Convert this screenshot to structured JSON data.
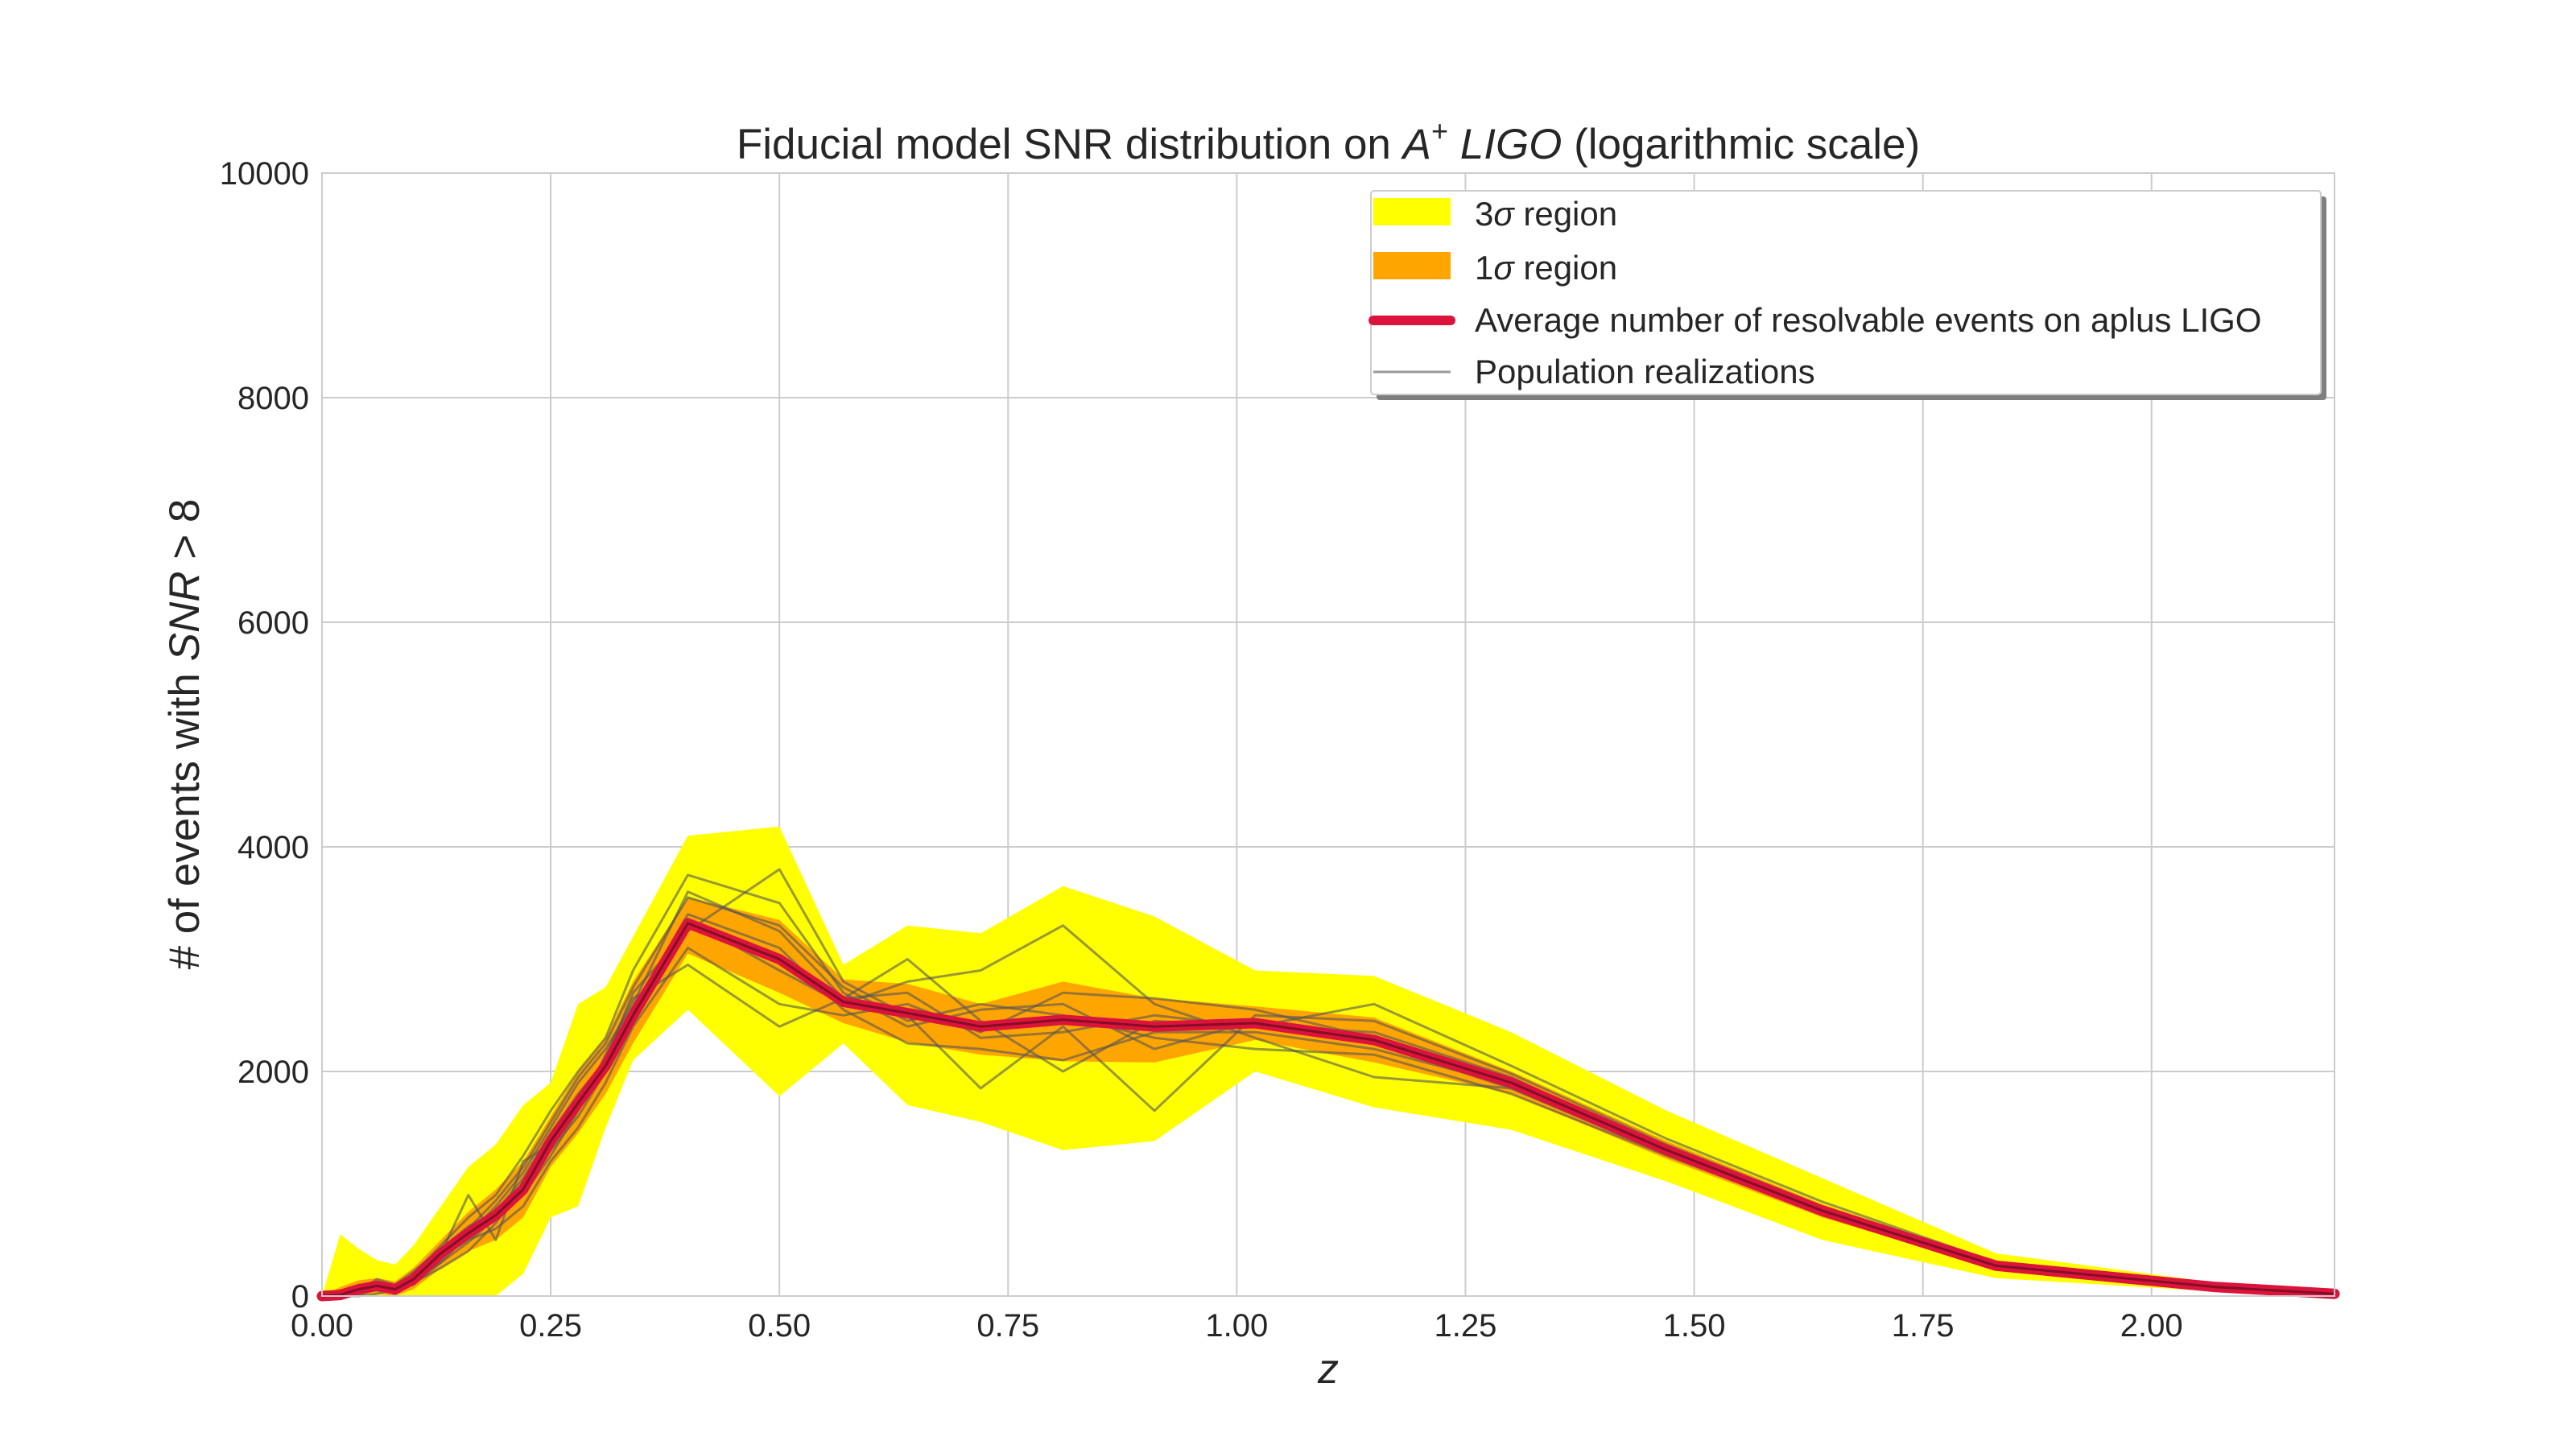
{
  "chart_data": {
    "type": "area",
    "title": {
      "prefix": "Fiducial model SNR distribution on ",
      "math_base": "A",
      "math_sup": "+",
      "math_name": " LIGO",
      "suffix": " (logarithmic scale)"
    },
    "xlabel": "z",
    "ylabel": {
      "prefix": "# of events with ",
      "math": "SNR",
      "suffix": " > 8"
    },
    "xlim": [
      0.0,
      2.2
    ],
    "ylim": [
      0,
      10000
    ],
    "grid": true,
    "legend_position": "top-right",
    "x_ticks": [
      "0.00",
      "0.25",
      "0.50",
      "0.75",
      "1.00",
      "1.25",
      "1.50",
      "1.75",
      "2.00"
    ],
    "y_ticks": [
      "0",
      "2000",
      "4000",
      "6000",
      "8000",
      "10000"
    ],
    "colors": {
      "sigma3": "#ffff00",
      "sigma1": "#ffa500",
      "mean": "#dc143c",
      "realization": "#555555"
    },
    "legend": [
      {
        "key": "sigma3",
        "num": "3",
        "sym": "σ",
        "text": " region"
      },
      {
        "key": "sigma1",
        "num": "1",
        "sym": "σ",
        "text": " region"
      },
      {
        "key": "mean",
        "text": "Average number of resolvable events on aplus LIGO"
      },
      {
        "key": "realization",
        "text": "Population realizations"
      }
    ],
    "x": [
      0.0,
      0.02,
      0.04,
      0.06,
      0.08,
      0.1,
      0.13,
      0.16,
      0.19,
      0.22,
      0.25,
      0.28,
      0.31,
      0.34,
      0.4,
      0.5,
      0.57,
      0.64,
      0.72,
      0.81,
      0.91,
      1.02,
      1.15,
      1.3,
      1.47,
      1.64,
      1.83,
      2.07,
      2.2
    ],
    "series": [
      {
        "name": "Average number of resolvable events on aplus LIGO",
        "values": [
          0,
          10,
          60,
          90,
          60,
          150,
          380,
          560,
          720,
          950,
          1380,
          1720,
          2050,
          2500,
          3320,
          3000,
          2620,
          2520,
          2400,
          2460,
          2400,
          2430,
          2280,
          1900,
          1300,
          760,
          270,
          80,
          20
        ]
      }
    ],
    "bands": {
      "sigma3_upper": [
        0,
        550,
        420,
        320,
        280,
        450,
        800,
        1150,
        1350,
        1700,
        1900,
        2600,
        2750,
        3200,
        4100,
        4180,
        2950,
        3300,
        3230,
        3650,
        3380,
        2900,
        2850,
        2350,
        1650,
        1050,
        380,
        120,
        40
      ],
      "sigma3_lower": [
        0,
        0,
        0,
        0,
        0,
        0,
        0,
        0,
        0,
        200,
        700,
        800,
        1500,
        2100,
        2550,
        1780,
        2250,
        1700,
        1550,
        1300,
        1380,
        2000,
        1680,
        1480,
        1020,
        500,
        160,
        40,
        10
      ],
      "sigma1_upper": [
        0,
        80,
        140,
        160,
        130,
        250,
        500,
        750,
        950,
        1200,
        1600,
        2000,
        2300,
        2800,
        3550,
        3350,
        2820,
        2780,
        2600,
        2800,
        2650,
        2580,
        2480,
        2000,
        1380,
        820,
        300,
        90,
        25
      ],
      "sigma1_lower": [
        0,
        0,
        10,
        20,
        0,
        60,
        250,
        400,
        500,
        700,
        1150,
        1450,
        1800,
        2250,
        3050,
        2700,
        2430,
        2260,
        2150,
        2090,
        2080,
        2280,
        2080,
        1800,
        1220,
        700,
        240,
        70,
        15
      ],
      "realizations": [
        [
          0,
          0,
          30,
          120,
          80,
          100,
          300,
          550,
          800,
          1100,
          1500,
          1900,
          2200,
          2600,
          3600,
          3250,
          2650,
          2700,
          2300,
          2350,
          2500,
          2400,
          2350,
          1950,
          1300,
          760,
          280,
          80,
          20
        ],
        [
          0,
          20,
          80,
          50,
          40,
          200,
          450,
          700,
          900,
          1250,
          1650,
          2000,
          2300,
          2900,
          3750,
          3500,
          2700,
          2400,
          2550,
          2600,
          2200,
          2450,
          2250,
          1850,
          1280,
          740,
          260,
          75,
          18
        ],
        [
          0,
          50,
          20,
          100,
          30,
          180,
          350,
          500,
          600,
          800,
          1200,
          1500,
          1900,
          2400,
          3100,
          2600,
          2500,
          2600,
          2350,
          2700,
          2650,
          2550,
          2300,
          1920,
          1320,
          780,
          275,
          85,
          22
        ],
        [
          0,
          0,
          0,
          80,
          50,
          120,
          250,
          400,
          650,
          1000,
          1300,
          1600,
          2000,
          2550,
          3400,
          3100,
          2550,
          2250,
          2200,
          2100,
          2350,
          2350,
          2200,
          1880,
          1290,
          760,
          270,
          80,
          20
        ],
        [
          0,
          10,
          50,
          150,
          100,
          220,
          420,
          620,
          750,
          1050,
          1450,
          1800,
          2100,
          2700,
          3250,
          3800,
          2800,
          2500,
          1850,
          2400,
          1650,
          2500,
          2450,
          1980,
          1350,
          800,
          290,
          90,
          24
        ],
        [
          0,
          0,
          100,
          60,
          20,
          160,
          380,
          900,
          500,
          1200,
          1350,
          1700,
          2000,
          2450,
          3350,
          2900,
          2600,
          2800,
          2900,
          3300,
          2600,
          2300,
          1950,
          1850,
          1260,
          720,
          250,
          70,
          16
        ],
        [
          0,
          30,
          0,
          20,
          60,
          140,
          300,
          480,
          700,
          900,
          1250,
          1650,
          2150,
          2650,
          2950,
          2400,
          2650,
          3000,
          2450,
          2000,
          2450,
          2400,
          2600,
          2050,
          1400,
          840,
          300,
          95,
          25
        ],
        [
          0,
          0,
          40,
          100,
          20,
          170,
          400,
          600,
          850,
          1150,
          1550,
          1950,
          2250,
          2750,
          3550,
          3300,
          2750,
          2450,
          2600,
          2500,
          2300,
          2200,
          2150,
          1800,
          1250,
          730,
          255,
          72,
          17
        ]
      ]
    }
  }
}
